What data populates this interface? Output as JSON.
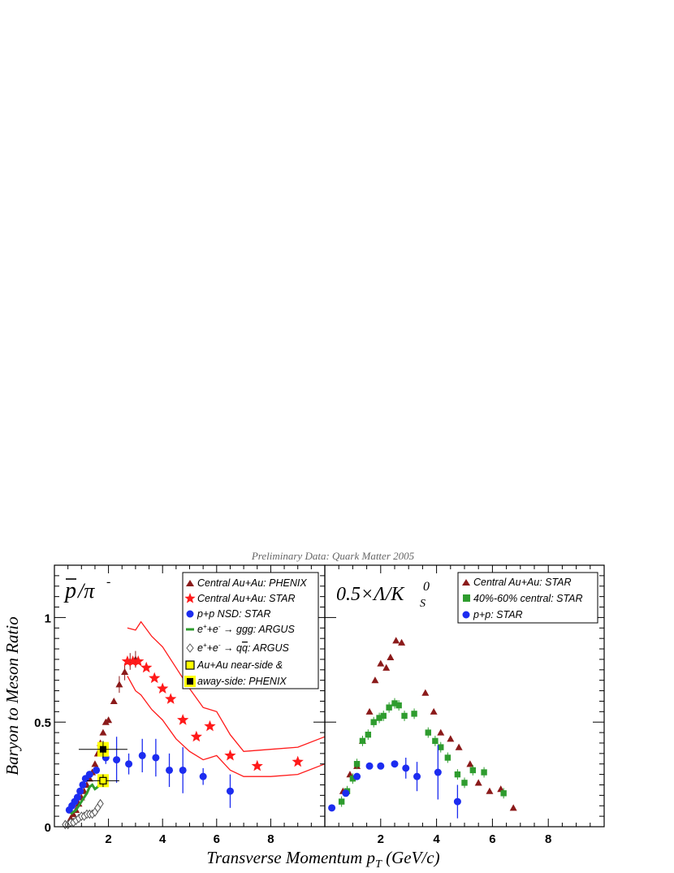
{
  "header": {
    "caption": "Preliminary Data: Quark Matter 2005"
  },
  "axes": {
    "xlabel": "Transverse Momentum p",
    "xlabel_sub": "T",
    "xlabel_units": " (GeV/c)",
    "ylabel": "Baryon to Meson Ratio"
  },
  "panels": [
    {
      "title_html": "p̄/π⁻",
      "title_parts": {
        "p": "p",
        "slash": "/π",
        "sup": "-"
      },
      "legend": [
        {
          "key": "phenix",
          "label": "Central Au+Au: PHENIX"
        },
        {
          "key": "star",
          "label": "Central Au+Au: STAR"
        },
        {
          "key": "ppnsd",
          "label": "p+p NSD: STAR"
        },
        {
          "key": "ggg",
          "label_parts": [
            "e",
            "+",
            "+e",
            "-",
            " → ggg: ARGUS"
          ]
        },
        {
          "key": "qq",
          "label_parts": [
            "e",
            "+",
            "+e",
            "-",
            " → q",
            "q",
            ": ARGUS"
          ]
        },
        {
          "key": "near",
          "label": "Au+Au near-side &"
        },
        {
          "key": "away",
          "label": "away-side: PHENIX"
        }
      ]
    },
    {
      "title_parts": {
        "pre": "0.5×Λ/K",
        "sup": "0",
        "sub": "S"
      },
      "legend": [
        {
          "key": "central",
          "label": "Central Au+Au: STAR"
        },
        {
          "key": "mid",
          "label": "40%-60% central: STAR"
        },
        {
          "key": "pp",
          "label": "p+p: STAR"
        }
      ]
    }
  ],
  "colors": {
    "phenix": "#8b1a1a",
    "star": "#ff1a1a",
    "pp": "#1c2cf0",
    "ggg": "#2e9c2e",
    "argus_open": "#555555",
    "highlight": "#ffff00"
  },
  "chart_data": [
    {
      "type": "scatter",
      "panel": "left",
      "xlim": [
        0,
        10
      ],
      "ylim": [
        0,
        1.25
      ],
      "x_ticks": [
        2,
        4,
        6,
        8
      ],
      "y_ticks": [
        0,
        0.5,
        1
      ],
      "y_tick_labels": [
        "0",
        "0.5",
        "1"
      ],
      "series": [
        {
          "name": "Central Au+Au: PHENIX",
          "marker": "triangle",
          "points": [
            [
              0.6,
              0.04
            ],
            [
              0.7,
              0.06
            ],
            [
              0.8,
              0.08
            ],
            [
              0.9,
              0.11
            ],
            [
              1.0,
              0.14
            ],
            [
              1.1,
              0.17
            ],
            [
              1.2,
              0.2
            ],
            [
              1.3,
              0.23
            ],
            [
              1.4,
              0.26
            ],
            [
              1.5,
              0.3
            ],
            [
              1.6,
              0.35
            ],
            [
              1.7,
              0.4
            ],
            [
              1.8,
              0.45
            ],
            [
              1.9,
              0.5
            ],
            [
              2.0,
              0.51
            ],
            [
              2.2,
              0.6
            ],
            [
              2.4,
              0.68
            ],
            [
              2.6,
              0.74
            ],
            [
              2.8,
              0.79
            ],
            [
              3.0,
              0.8
            ]
          ]
        },
        {
          "name": "Central Au+Au: STAR",
          "marker": "star",
          "points": [
            [
              2.7,
              0.79
            ],
            [
              2.9,
              0.79
            ],
            [
              3.1,
              0.79
            ],
            [
              3.4,
              0.76
            ],
            [
              3.7,
              0.71
            ],
            [
              4.0,
              0.66
            ],
            [
              4.3,
              0.61
            ],
            [
              4.75,
              0.51
            ],
            [
              5.25,
              0.43
            ],
            [
              5.75,
              0.48
            ],
            [
              6.5,
              0.34
            ],
            [
              7.5,
              0.29
            ],
            [
              9.0,
              0.31
            ]
          ],
          "band_upper": [
            [
              2.7,
              0.95
            ],
            [
              3.0,
              0.94
            ],
            [
              3.2,
              0.98
            ],
            [
              3.6,
              0.91
            ],
            [
              4.0,
              0.86
            ],
            [
              4.5,
              0.76
            ],
            [
              5.0,
              0.66
            ],
            [
              5.5,
              0.57
            ],
            [
              6.0,
              0.55
            ],
            [
              6.5,
              0.44
            ],
            [
              7.0,
              0.36
            ],
            [
              8.0,
              0.37
            ],
            [
              9.0,
              0.38
            ],
            [
              10.0,
              0.43
            ]
          ],
          "band_lower": [
            [
              2.7,
              0.72
            ],
            [
              3.0,
              0.65
            ],
            [
              3.2,
              0.63
            ],
            [
              3.6,
              0.56
            ],
            [
              4.0,
              0.51
            ],
            [
              4.5,
              0.42
            ],
            [
              5.0,
              0.36
            ],
            [
              5.5,
              0.32
            ],
            [
              6.0,
              0.34
            ],
            [
              6.5,
              0.27
            ],
            [
              7.0,
              0.24
            ],
            [
              8.0,
              0.24
            ],
            [
              9.0,
              0.25
            ],
            [
              10.0,
              0.3
            ]
          ]
        },
        {
          "name": "p+p NSD: STAR",
          "marker": "circle",
          "points": [
            [
              0.55,
              0.08,
              0.0
            ],
            [
              0.65,
              0.1,
              0.0
            ],
            [
              0.75,
              0.12,
              0.0
            ],
            [
              0.85,
              0.14,
              0.0
            ],
            [
              0.95,
              0.17,
              0.0
            ],
            [
              1.05,
              0.2,
              0.0
            ],
            [
              1.15,
              0.23,
              0.0
            ],
            [
              1.3,
              0.25,
              0.0
            ],
            [
              1.55,
              0.27,
              0.0
            ],
            [
              1.9,
              0.33,
              0.03
            ],
            [
              2.3,
              0.32,
              0.11
            ],
            [
              2.75,
              0.3,
              0.05
            ],
            [
              3.25,
              0.34,
              0.08
            ],
            [
              3.75,
              0.33,
              0.09
            ],
            [
              4.25,
              0.27,
              0.08
            ],
            [
              4.75,
              0.27,
              0.11
            ],
            [
              5.5,
              0.24,
              0.04
            ],
            [
              6.5,
              0.17,
              0.08
            ]
          ]
        },
        {
          "name": "e+ +e- → ggg: ARGUS",
          "marker": "line",
          "points": [
            [
              0.6,
              0.06
            ],
            [
              0.8,
              0.08
            ],
            [
              0.9,
              0.1
            ],
            [
              1.0,
              0.12
            ],
            [
              1.1,
              0.14
            ],
            [
              1.2,
              0.16
            ],
            [
              1.3,
              0.19
            ],
            [
              1.4,
              0.2
            ],
            [
              1.5,
              0.18
            ],
            [
              1.6,
              0.19
            ],
            [
              1.7,
              0.21
            ]
          ]
        },
        {
          "name": "e+ +e- → qq̄: ARGUS",
          "marker": "open-diamond",
          "points": [
            [
              0.4,
              0.01
            ],
            [
              0.5,
              0.01
            ],
            [
              0.6,
              0.02
            ],
            [
              0.7,
              0.02
            ],
            [
              0.8,
              0.03
            ],
            [
              0.9,
              0.04
            ],
            [
              1.0,
              0.05
            ],
            [
              1.1,
              0.05
            ],
            [
              1.2,
              0.06
            ],
            [
              1.3,
              0.06
            ],
            [
              1.4,
              0.06
            ],
            [
              1.5,
              0.07
            ],
            [
              1.6,
              0.09
            ],
            [
              1.7,
              0.11
            ]
          ]
        },
        {
          "name": "Au+Au near-side: PHENIX",
          "marker": "open-square",
          "points": [
            [
              1.8,
              0.22
            ]
          ]
        },
        {
          "name": "Au+Au away-side: PHENIX",
          "marker": "filled-square",
          "points": [
            [
              1.8,
              0.37
            ]
          ]
        }
      ]
    },
    {
      "type": "scatter",
      "panel": "right",
      "xlim": [
        0,
        10
      ],
      "ylim": [
        0,
        1.25
      ],
      "x_ticks": [
        2,
        4,
        6,
        8
      ],
      "series": [
        {
          "name": "Central Au+Au: STAR",
          "marker": "triangle",
          "points": [
            [
              0.65,
              0.17
            ],
            [
              0.9,
              0.25
            ],
            [
              1.15,
              0.29
            ],
            [
              1.35,
              0.41
            ],
            [
              1.6,
              0.55
            ],
            [
              1.8,
              0.7
            ],
            [
              2.0,
              0.78
            ],
            [
              2.2,
              0.76
            ],
            [
              2.35,
              0.81
            ],
            [
              2.55,
              0.89
            ],
            [
              2.75,
              0.88
            ],
            [
              3.6,
              0.64
            ],
            [
              3.9,
              0.55
            ],
            [
              4.15,
              0.45
            ],
            [
              4.5,
              0.42
            ],
            [
              4.8,
              0.38
            ],
            [
              5.2,
              0.3
            ],
            [
              5.5,
              0.21
            ],
            [
              5.9,
              0.17
            ],
            [
              6.3,
              0.18
            ],
            [
              6.75,
              0.09
            ]
          ]
        },
        {
          "name": "40%-60% central: STAR",
          "marker": "square",
          "points": [
            [
              0.6,
              0.12
            ],
            [
              0.8,
              0.17
            ],
            [
              1.0,
              0.23
            ],
            [
              1.15,
              0.3
            ],
            [
              1.35,
              0.41
            ],
            [
              1.55,
              0.44
            ],
            [
              1.75,
              0.5
            ],
            [
              1.95,
              0.52
            ],
            [
              2.1,
              0.53
            ],
            [
              2.3,
              0.57
            ],
            [
              2.5,
              0.59
            ],
            [
              2.65,
              0.58
            ],
            [
              2.85,
              0.53
            ],
            [
              3.2,
              0.54
            ],
            [
              3.7,
              0.45
            ],
            [
              3.95,
              0.41
            ],
            [
              4.15,
              0.38
            ],
            [
              4.4,
              0.33
            ],
            [
              4.75,
              0.25
            ],
            [
              5.0,
              0.21
            ],
            [
              5.3,
              0.27
            ],
            [
              5.7,
              0.26
            ],
            [
              6.4,
              0.16
            ]
          ]
        },
        {
          "name": "p+p: STAR",
          "marker": "circle",
          "points": [
            [
              0.25,
              0.09,
              0.0
            ],
            [
              0.75,
              0.16,
              0.0
            ],
            [
              1.15,
              0.24,
              0.0
            ],
            [
              1.6,
              0.29,
              0.0
            ],
            [
              2.0,
              0.29,
              0.0
            ],
            [
              2.5,
              0.3,
              0.0
            ],
            [
              2.9,
              0.28,
              0.05
            ],
            [
              3.3,
              0.24,
              0.07
            ],
            [
              4.05,
              0.26,
              0.13
            ],
            [
              4.75,
              0.12,
              0.08
            ]
          ]
        }
      ]
    }
  ]
}
